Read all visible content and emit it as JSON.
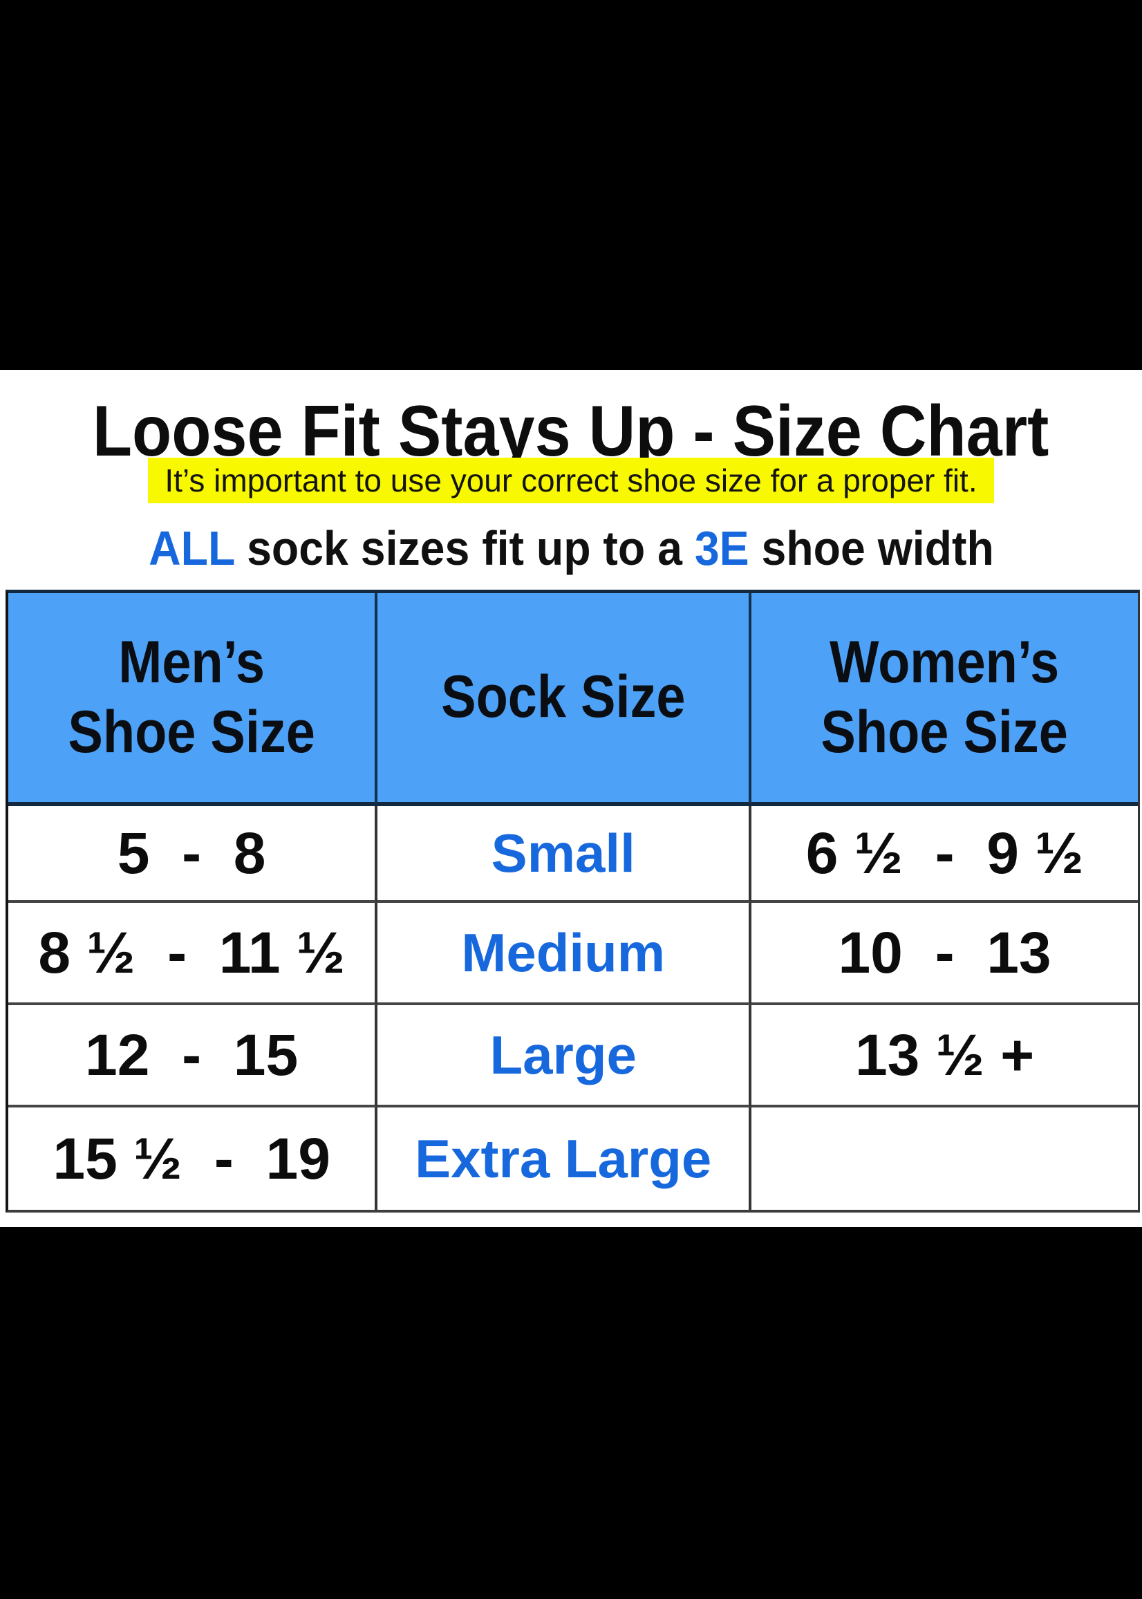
{
  "page": {
    "title": "Loose Fit Stays Up - Size Chart",
    "highlight_note": "It’s important to use your correct shoe size for a proper fit.",
    "subtitle": {
      "part1": "ALL",
      "part2": " sock sizes fit up to a ",
      "part3": "3E",
      "part4": " shoe width"
    }
  },
  "colors": {
    "header_blue": "#4da1f7",
    "accent_blue": "#1768dd",
    "highlight_yellow": "#f8f800",
    "text_black": "#0d0d0d",
    "letterbox_black": "#000000"
  },
  "table": {
    "headers": {
      "mens": "Men’s\nShoe Size",
      "sock": "Sock Size",
      "womens": "Women’s\nShoe Size"
    },
    "rows": [
      {
        "mens": "5  -  8",
        "sock": "Small",
        "womens": "6 ½  -  9 ½"
      },
      {
        "mens": "8 ½  -  11 ½",
        "sock": "Medium",
        "womens": "10  -  13"
      },
      {
        "mens": "12  -  15",
        "sock": "Large",
        "womens": "13 ½ +"
      },
      {
        "mens": "15 ½  -  19",
        "sock": "Extra Large",
        "womens": ""
      }
    ]
  },
  "chart_data": {
    "type": "table",
    "title": "Loose Fit Stays Up - Size Chart",
    "columns": [
      "Men's Shoe Size",
      "Sock Size",
      "Women's Shoe Size"
    ],
    "rows": [
      [
        "5 - 8",
        "Small",
        "6 ½ - 9 ½"
      ],
      [
        "8 ½ - 11 ½",
        "Medium",
        "10 - 13"
      ],
      [
        "12 - 15",
        "Large",
        "13 ½ +"
      ],
      [
        "15 ½ - 19",
        "Extra Large",
        ""
      ]
    ]
  }
}
